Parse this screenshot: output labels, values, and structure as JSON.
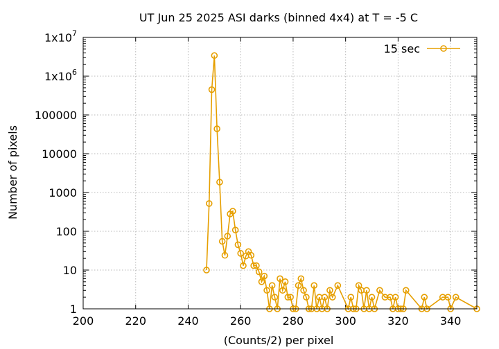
{
  "chart_data": {
    "type": "line",
    "title": "UT Jun 25 2025 ASI darks (binned 4x4) at T = -5 C",
    "xlabel": "(Counts/2) per pixel",
    "ylabel": "Number of pixels",
    "xlim": [
      200,
      350
    ],
    "ylim": [
      1,
      10000000
    ],
    "yscale": "log",
    "grid": true,
    "legend_position": "top-right",
    "x_ticks": [
      200,
      220,
      240,
      260,
      280,
      300,
      320,
      340
    ],
    "x_tick_labels": [
      "200",
      "220",
      "240",
      "260",
      "280",
      "300",
      "320",
      "340"
    ],
    "y_ticks": [
      1,
      10,
      100,
      1000,
      10000,
      100000,
      1000000,
      10000000
    ],
    "y_tick_labels": [
      {
        "base": "1",
        "exp": ""
      },
      {
        "base": "10",
        "exp": ""
      },
      {
        "base": "100",
        "exp": ""
      },
      {
        "base": "1000",
        "exp": ""
      },
      {
        "base": "10000",
        "exp": ""
      },
      {
        "base": "100000",
        "exp": ""
      },
      {
        "base": "1x10",
        "exp": "6"
      },
      {
        "base": "1x10",
        "exp": "7"
      }
    ],
    "series": [
      {
        "name": "15 sec",
        "color": "#e69f00",
        "x": [
          247,
          248,
          249,
          250,
          251,
          252,
          253,
          254,
          255,
          256,
          257,
          258,
          259,
          260,
          261,
          262,
          263,
          264,
          265,
          266,
          267,
          268,
          269,
          270,
          271,
          272,
          273,
          274,
          275,
          276,
          277,
          278,
          279,
          280,
          281,
          282,
          283,
          284,
          285,
          286,
          287,
          288,
          289,
          290,
          291,
          292,
          293,
          294,
          295,
          297,
          301,
          302,
          303,
          304,
          305,
          306,
          307,
          308,
          309,
          310,
          311,
          313,
          315,
          317,
          318,
          319,
          320,
          321,
          322,
          323,
          329,
          330,
          331,
          337,
          339,
          340,
          342,
          350
        ],
        "y": [
          10,
          520,
          450000,
          3400000,
          44000,
          1850,
          55,
          24,
          75,
          280,
          330,
          108,
          45,
          27,
          13,
          23,
          30,
          24,
          13,
          13,
          9,
          5,
          7,
          3,
          1,
          4,
          2,
          1,
          6,
          3,
          5,
          2,
          2,
          1,
          1,
          4,
          6,
          3,
          2,
          1,
          1,
          4,
          1,
          2,
          1,
          2,
          1,
          3,
          2,
          4,
          1,
          2,
          1,
          1,
          4,
          3,
          1,
          3,
          1,
          2,
          1,
          3,
          2,
          2,
          1,
          2,
          1,
          1,
          1,
          3,
          1,
          2,
          1,
          2,
          2,
          1,
          2,
          1
        ]
      }
    ]
  }
}
